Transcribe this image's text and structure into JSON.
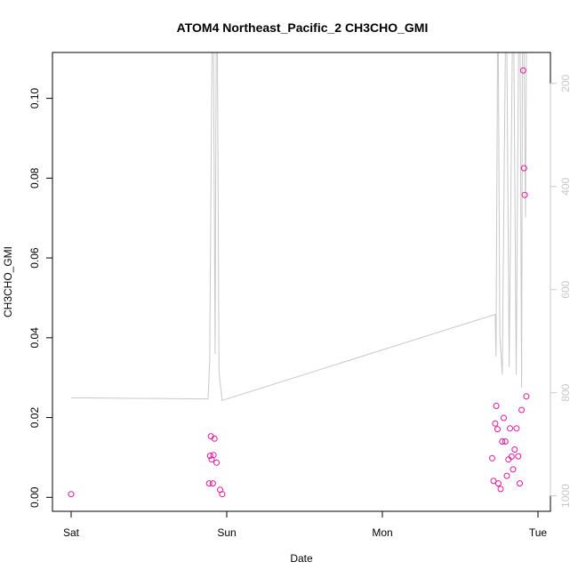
{
  "chart_data": {
    "type": "scatter",
    "title": "ATOM4 Northeast_Pacific_2 CH3CHO_GMI",
    "xlabel": "Date",
    "ylabel": "CH3CHO_GMI",
    "x_ticks": [
      {
        "label": "Sat",
        "day": 0
      },
      {
        "label": "Sun",
        "day": 1
      },
      {
        "label": "Mon",
        "day": 2
      },
      {
        "label": "Tue",
        "day": 3
      }
    ],
    "y_ticks": [
      "0.00",
      "0.02",
      "0.04",
      "0.06",
      "0.08",
      "0.10"
    ],
    "ylim": [
      -0.0035,
      0.1115
    ],
    "right_axis": {
      "ticks": [
        "200",
        "400",
        "600",
        "800",
        "1000"
      ],
      "range_top_to_bottom": [
        140,
        1030
      ],
      "color": "#c8c8c8"
    },
    "series": [
      {
        "color": "#e0179e",
        "points": [
          [
            0.0,
            0.0008
          ],
          [
            0.887,
            0.0035
          ],
          [
            0.893,
            0.0104
          ],
          [
            0.898,
            0.0153
          ],
          [
            0.903,
            0.0095
          ],
          [
            0.911,
            0.0035
          ],
          [
            0.915,
            0.0106
          ],
          [
            0.921,
            0.0147
          ],
          [
            0.934,
            0.0087
          ],
          [
            0.957,
            0.0019
          ],
          [
            0.971,
            0.0008
          ],
          [
            2.706,
            0.0098
          ],
          [
            2.714,
            0.0041
          ],
          [
            2.725,
            0.0185
          ],
          [
            2.732,
            0.0229
          ],
          [
            2.74,
            0.0171
          ],
          [
            2.745,
            0.0035
          ],
          [
            2.76,
            0.0021
          ],
          [
            2.77,
            0.014
          ],
          [
            2.78,
            0.0199
          ],
          [
            2.79,
            0.014
          ],
          [
            2.8,
            0.0054
          ],
          [
            2.81,
            0.0095
          ],
          [
            2.82,
            0.0173
          ],
          [
            2.83,
            0.0102
          ],
          [
            2.84,
            0.007
          ],
          [
            2.85,
            0.012
          ],
          [
            2.862,
            0.0173
          ],
          [
            2.873,
            0.0103
          ],
          [
            2.883,
            0.0035
          ],
          [
            2.895,
            0.0219
          ],
          [
            2.905,
            0.107
          ],
          [
            2.91,
            0.0825
          ],
          [
            2.915,
            0.0758
          ],
          [
            2.925,
            0.0253
          ]
        ]
      }
    ],
    "background_line": {
      "color": "#c8c8c8",
      "points": [
        [
          0.0,
          810
        ],
        [
          0.88,
          812
        ],
        [
          0.89,
          740
        ],
        [
          0.905,
          140
        ],
        [
          0.915,
          140
        ],
        [
          0.925,
          725
        ],
        [
          0.932,
          140
        ],
        [
          0.94,
          140
        ],
        [
          0.95,
          760
        ],
        [
          0.97,
          815
        ],
        [
          2.725,
          648
        ],
        [
          2.73,
          730
        ],
        [
          2.74,
          140
        ],
        [
          2.745,
          140
        ],
        [
          2.755,
          690
        ],
        [
          2.77,
          765
        ],
        [
          2.79,
          140
        ],
        [
          2.8,
          140
        ],
        [
          2.815,
          750
        ],
        [
          2.835,
          140
        ],
        [
          2.845,
          140
        ],
        [
          2.86,
          765
        ],
        [
          2.875,
          140
        ],
        [
          2.885,
          140
        ],
        [
          2.895,
          790
        ],
        [
          2.9,
          140
        ],
        [
          2.91,
          140
        ],
        [
          2.92,
          460
        ],
        [
          2.925,
          140
        ]
      ]
    }
  }
}
